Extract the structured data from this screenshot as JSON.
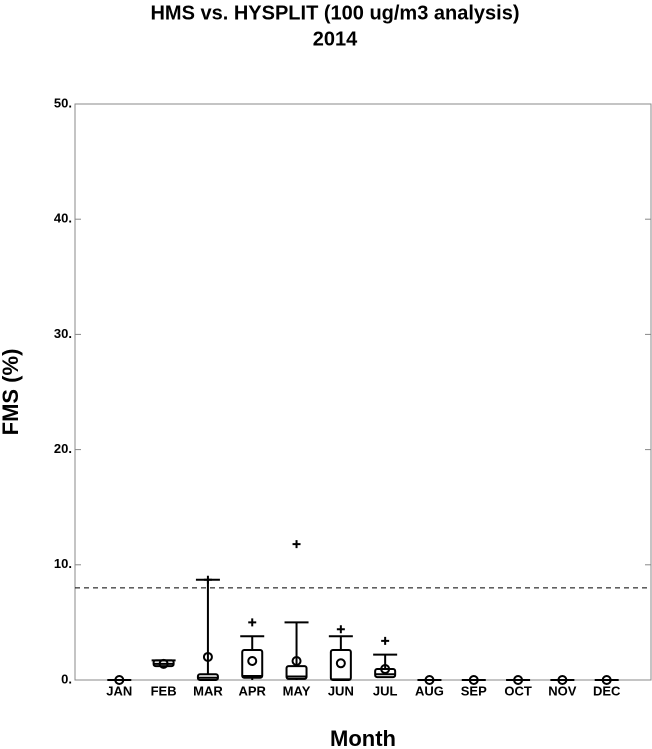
{
  "chart_data": {
    "type": "box",
    "title": "HMS vs. HYSPLIT (100 ug/m3 analysis)",
    "subtitle": "2014",
    "x_label": "Month",
    "y_label": "FMS (%)",
    "categories": [
      "JAN",
      "FEB",
      "MAR",
      "APR",
      "MAY",
      "JUN",
      "JUL",
      "AUG",
      "SEP",
      "OCT",
      "NOV",
      "DEC"
    ],
    "min": [
      0,
      1.1,
      0,
      0,
      0,
      0,
      0.2,
      0,
      0,
      0,
      0,
      0
    ],
    "q1": [
      0,
      1.2,
      0,
      0.2,
      0.1,
      0,
      0.25,
      0,
      0,
      0,
      0,
      0
    ],
    "median": [
      0,
      1.4,
      0.2,
      0.35,
      0.3,
      0.05,
      0.5,
      0,
      0,
      0,
      0,
      0
    ],
    "q3": [
      0,
      1.7,
      0.5,
      2.6,
      1.2,
      2.6,
      0.95,
      0,
      0,
      0,
      0,
      0
    ],
    "max": [
      0,
      1.7,
      8.7,
      3.8,
      5.0,
      3.8,
      2.2,
      0,
      0,
      0,
      0,
      0
    ],
    "mean": [
      0,
      1.4,
      2.0,
      1.65,
      1.65,
      1.45,
      0.95,
      0,
      0,
      0,
      0,
      0
    ],
    "outliers": [
      [],
      [],
      [
        8.7
      ],
      [
        5.0
      ],
      [
        11.8
      ],
      [
        4.4
      ],
      [
        3.4
      ],
      [],
      [],
      [],
      [],
      []
    ],
    "color": "#000000",
    "reference_line": 8,
    "ylim": [
      0,
      50
    ],
    "yticks": [
      {
        "value": 0,
        "label": "0."
      },
      {
        "value": 10,
        "label": "10."
      },
      {
        "value": 20,
        "label": "20."
      },
      {
        "value": 30,
        "label": "30."
      },
      {
        "value": 40,
        "label": "40."
      },
      {
        "value": 50,
        "label": "50."
      }
    ]
  }
}
